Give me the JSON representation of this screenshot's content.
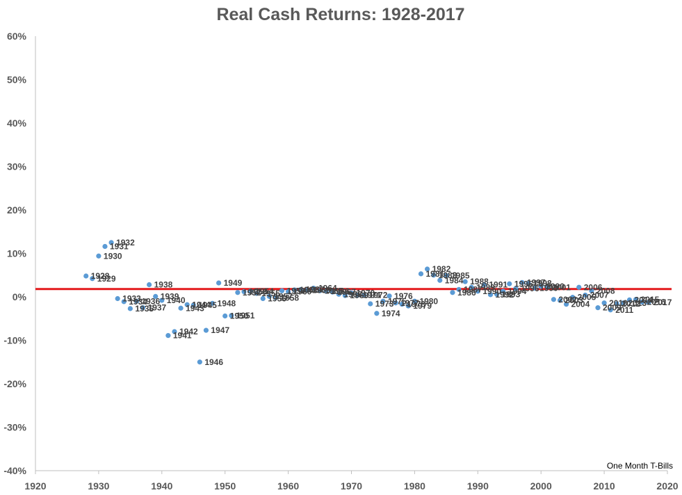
{
  "chart_data": {
    "type": "scatter",
    "title": "Real Cash Returns: 1928-2017",
    "xlabel": "",
    "ylabel": "",
    "xlim": [
      1920,
      2020
    ],
    "ylim": [
      -40,
      60
    ],
    "x_ticks": [
      1920,
      1930,
      1940,
      1950,
      1960,
      1970,
      1980,
      1990,
      2000,
      2010,
      2020
    ],
    "y_ticks": [
      -40,
      -30,
      -20,
      -10,
      0,
      10,
      20,
      30,
      40,
      50,
      60
    ],
    "y_tick_suffix": "%",
    "grid": false,
    "point_color": "#5b9bd5",
    "reference_line_color": "#e31a1c",
    "reference_line_value": 1.8,
    "note": "One Month T-Bills",
    "points": [
      {
        "x": 1928,
        "y": 4.8,
        "label": "1928"
      },
      {
        "x": 1929,
        "y": 4.2,
        "label": "1929"
      },
      {
        "x": 1930,
        "y": 9.4,
        "label": "1930"
      },
      {
        "x": 1931,
        "y": 11.6,
        "label": "1931"
      },
      {
        "x": 1932,
        "y": 12.5,
        "label": "1932"
      },
      {
        "x": 1933,
        "y": -0.4,
        "label": "1933"
      },
      {
        "x": 1934,
        "y": -1.1,
        "label": "1934"
      },
      {
        "x": 1935,
        "y": -2.7,
        "label": "1935"
      },
      {
        "x": 1936,
        "y": -1.0,
        "label": "1936"
      },
      {
        "x": 1937,
        "y": -2.5,
        "label": "1937"
      },
      {
        "x": 1938,
        "y": 2.8,
        "label": "1938"
      },
      {
        "x": 1939,
        "y": 0.1,
        "label": "1939"
      },
      {
        "x": 1940,
        "y": -0.8,
        "label": "1940"
      },
      {
        "x": 1941,
        "y": -8.9,
        "label": "1941"
      },
      {
        "x": 1942,
        "y": -8.0,
        "label": "1942"
      },
      {
        "x": 1943,
        "y": -2.6,
        "label": "1943"
      },
      {
        "x": 1944,
        "y": -1.8,
        "label": "1944"
      },
      {
        "x": 1945,
        "y": -1.9,
        "label": "1945"
      },
      {
        "x": 1946,
        "y": -15.0,
        "label": "1946"
      },
      {
        "x": 1947,
        "y": -7.7,
        "label": "1947"
      },
      {
        "x": 1948,
        "y": -1.5,
        "label": "1948"
      },
      {
        "x": 1949,
        "y": 3.2,
        "label": "1949"
      },
      {
        "x": 1950,
        "y": -4.4,
        "label": "1950"
      },
      {
        "x": 1951,
        "y": -4.3,
        "label": "1951"
      },
      {
        "x": 1952,
        "y": 1.0,
        "label": "1952"
      },
      {
        "x": 1953,
        "y": 1.2,
        "label": "1953"
      },
      {
        "x": 1954,
        "y": 1.3,
        "label": "1954"
      },
      {
        "x": 1955,
        "y": 0.8,
        "label": "1955"
      },
      {
        "x": 1956,
        "y": -0.4,
        "label": "1956"
      },
      {
        "x": 1957,
        "y": 0.1,
        "label": "1957"
      },
      {
        "x": 1958,
        "y": -0.2,
        "label": "1958"
      },
      {
        "x": 1959,
        "y": 1.4,
        "label": "1959"
      },
      {
        "x": 1960,
        "y": 1.2,
        "label": "1960"
      },
      {
        "x": 1961,
        "y": 1.6,
        "label": "1961"
      },
      {
        "x": 1962,
        "y": 1.7,
        "label": "1962"
      },
      {
        "x": 1963,
        "y": 1.5,
        "label": "1963"
      },
      {
        "x": 1964,
        "y": 2.0,
        "label": "1964"
      },
      {
        "x": 1965,
        "y": 1.4,
        "label": "1965"
      },
      {
        "x": 1966,
        "y": 1.3,
        "label": "1966"
      },
      {
        "x": 1967,
        "y": 1.1,
        "label": "1967"
      },
      {
        "x": 1968,
        "y": 0.6,
        "label": "1968"
      },
      {
        "x": 1969,
        "y": 0.3,
        "label": "1969"
      },
      {
        "x": 1970,
        "y": 0.9,
        "label": "1970"
      },
      {
        "x": 1971,
        "y": 0.4,
        "label": "1971"
      },
      {
        "x": 1972,
        "y": 0.4,
        "label": "1972"
      },
      {
        "x": 1973,
        "y": -1.6,
        "label": "1973"
      },
      {
        "x": 1974,
        "y": -3.8,
        "label": "1974"
      },
      {
        "x": 1975,
        "y": -1.0,
        "label": "1975"
      },
      {
        "x": 1976,
        "y": 0.2,
        "label": "1976"
      },
      {
        "x": 1977,
        "y": -1.4,
        "label": "1977"
      },
      {
        "x": 1978,
        "y": -1.7,
        "label": "1978"
      },
      {
        "x": 1979,
        "y": -2.1,
        "label": "1979"
      },
      {
        "x": 1980,
        "y": -1.0,
        "label": "1980"
      },
      {
        "x": 1981,
        "y": 5.3,
        "label": "1981"
      },
      {
        "x": 1982,
        "y": 6.4,
        "label": "1982"
      },
      {
        "x": 1983,
        "y": 5.0,
        "label": "1983"
      },
      {
        "x": 1984,
        "y": 3.8,
        "label": "1984"
      },
      {
        "x": 1985,
        "y": 4.9,
        "label": "1985"
      },
      {
        "x": 1986,
        "y": 1.0,
        "label": "1986"
      },
      {
        "x": 1987,
        "y": 1.7,
        "label": "1987"
      },
      {
        "x": 1988,
        "y": 3.5,
        "label": "1988"
      },
      {
        "x": 1989,
        "y": 2.2,
        "label": "1989"
      },
      {
        "x": 1990,
        "y": 1.3,
        "label": "1990"
      },
      {
        "x": 1991,
        "y": 2.8,
        "label": "1991"
      },
      {
        "x": 1992,
        "y": 0.5,
        "label": "1992"
      },
      {
        "x": 1993,
        "y": 0.6,
        "label": "1993"
      },
      {
        "x": 1994,
        "y": 1.3,
        "label": "1994"
      },
      {
        "x": 1995,
        "y": 3.0,
        "label": "1995"
      },
      {
        "x": 1996,
        "y": 1.9,
        "label": "1996"
      },
      {
        "x": 1997,
        "y": 3.3,
        "label": "1997"
      },
      {
        "x": 1998,
        "y": 3.1,
        "label": "1998"
      },
      {
        "x": 1999,
        "y": 2.0,
        "label": "1999"
      },
      {
        "x": 2000,
        "y": 2.4,
        "label": "2000"
      },
      {
        "x": 2001,
        "y": 2.2,
        "label": "2001"
      },
      {
        "x": 2002,
        "y": -0.6,
        "label": "2002"
      },
      {
        "x": 2003,
        "y": -0.8,
        "label": "2003"
      },
      {
        "x": 2004,
        "y": -1.7,
        "label": "2004"
      },
      {
        "x": 2005,
        "y": -0.1,
        "label": "2005"
      },
      {
        "x": 2006,
        "y": 2.2,
        "label": "2006"
      },
      {
        "x": 2007,
        "y": 0.4,
        "label": "2007"
      },
      {
        "x": 2008,
        "y": 1.4,
        "label": "2008"
      },
      {
        "x": 2009,
        "y": -2.5,
        "label": "2009"
      },
      {
        "x": 2010,
        "y": -1.4,
        "label": "2010"
      },
      {
        "x": 2011,
        "y": -3.0,
        "label": "2011"
      },
      {
        "x": 2012,
        "y": -1.6,
        "label": "2012"
      },
      {
        "x": 2013,
        "y": -1.4,
        "label": "2013"
      },
      {
        "x": 2014,
        "y": -0.7,
        "label": "2014"
      },
      {
        "x": 2015,
        "y": -0.6,
        "label": "2015"
      },
      {
        "x": 2016,
        "y": -1.2,
        "label": "2016"
      },
      {
        "x": 2017,
        "y": -1.3,
        "label": "2017"
      }
    ]
  }
}
